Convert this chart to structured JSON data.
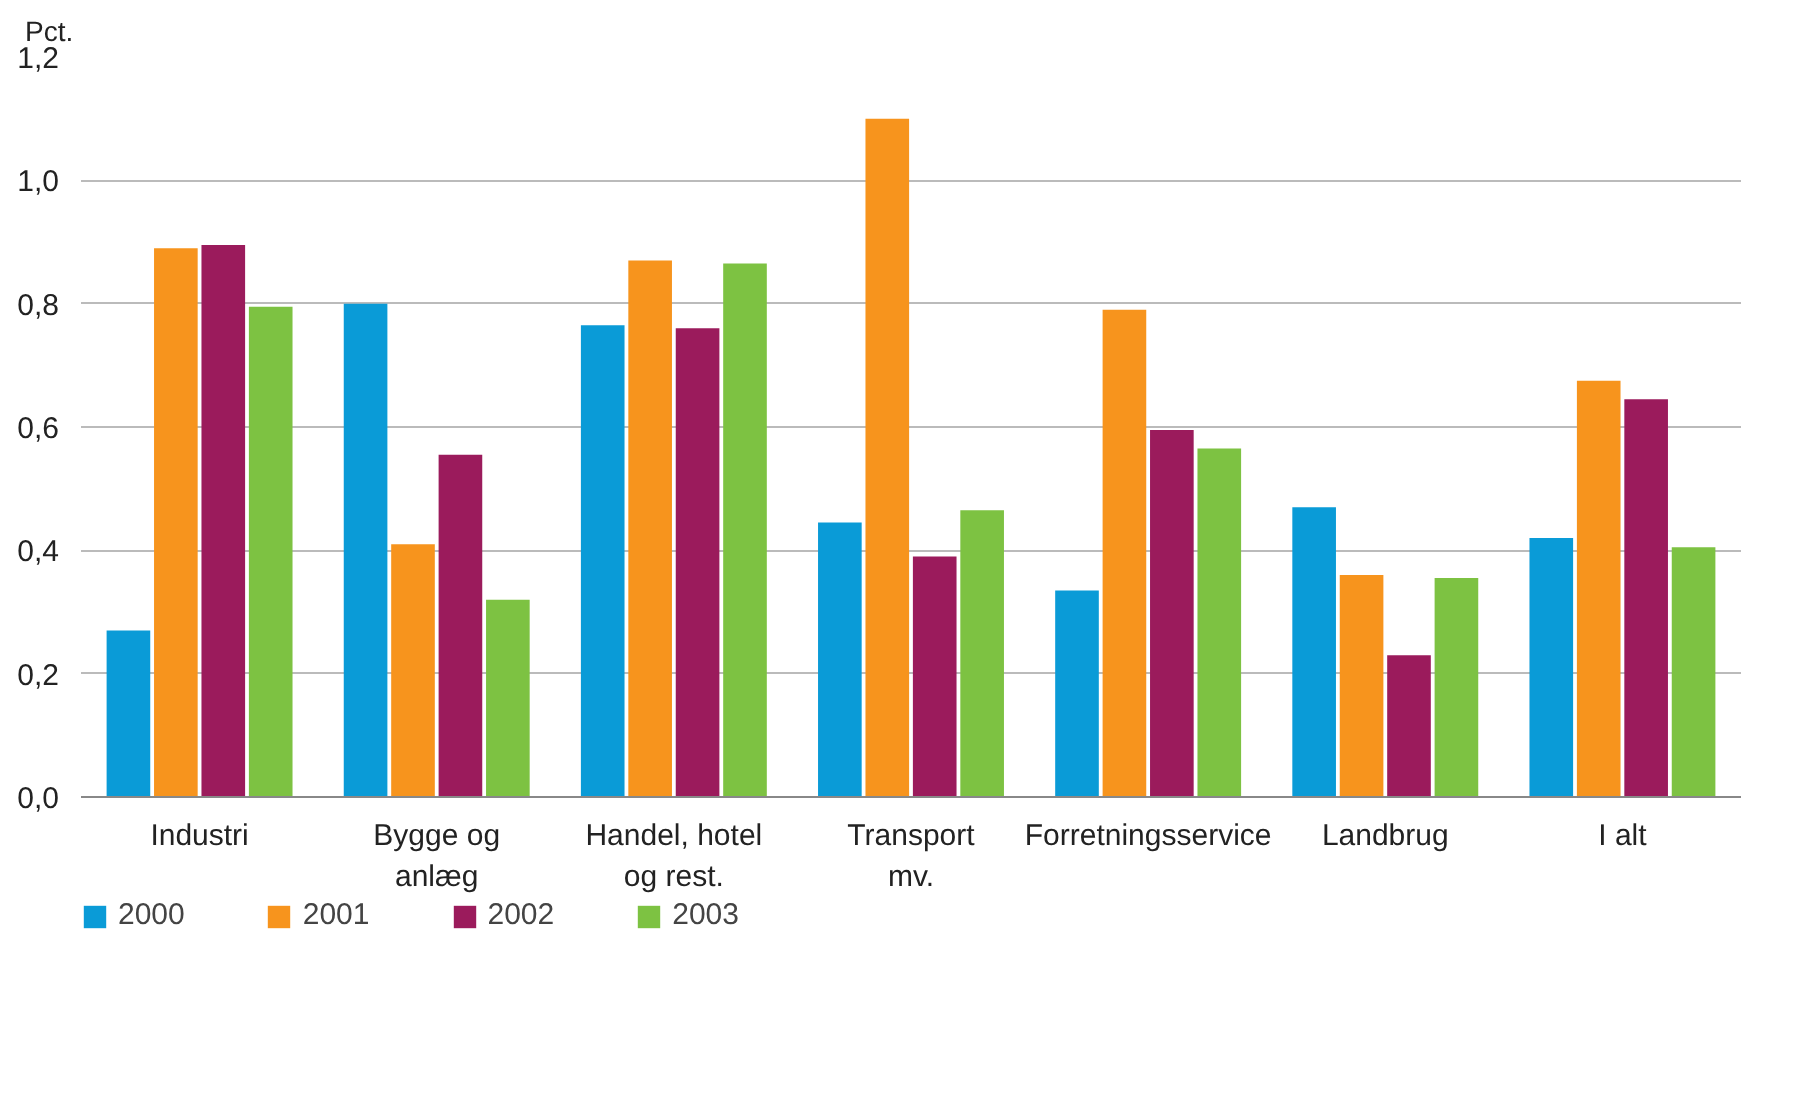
{
  "chart_data": {
    "type": "bar",
    "ylabel": "Pct.",
    "categories": [
      "Industri",
      "Bygge og\nanlæg",
      "Handel, hotel\nog rest.",
      "Transport\nmv.",
      "Forretningsservice",
      "Landbrug",
      "I alt"
    ],
    "series": [
      {
        "name": "2000",
        "color": "#0a9bd7",
        "values": [
          0.27,
          0.8,
          0.765,
          0.445,
          0.335,
          0.47,
          0.42
        ]
      },
      {
        "name": "2001",
        "color": "#f7941d",
        "values": [
          0.89,
          0.41,
          0.87,
          1.1,
          0.79,
          0.36,
          0.675
        ]
      },
      {
        "name": "2002",
        "color": "#9b1b5c",
        "values": [
          0.895,
          0.555,
          0.76,
          0.39,
          0.595,
          0.23,
          0.645
        ]
      },
      {
        "name": "2003",
        "color": "#7dc242",
        "values": [
          0.795,
          0.32,
          0.865,
          0.465,
          0.565,
          0.355,
          0.405
        ]
      }
    ],
    "ylim": [
      0,
      1.2
    ],
    "yticks": [
      {
        "value": 0,
        "label": "0,0"
      },
      {
        "value": 0.2,
        "label": "0,2"
      },
      {
        "value": 0.4,
        "label": "0,4"
      },
      {
        "value": 0.6,
        "label": "0,6"
      },
      {
        "value": 0.8,
        "label": "0,8"
      },
      {
        "value": 1.0,
        "label": "1,0"
      },
      {
        "value": 1.2,
        "label": "1,2"
      }
    ],
    "grid": "y",
    "legend": "bottom left"
  }
}
